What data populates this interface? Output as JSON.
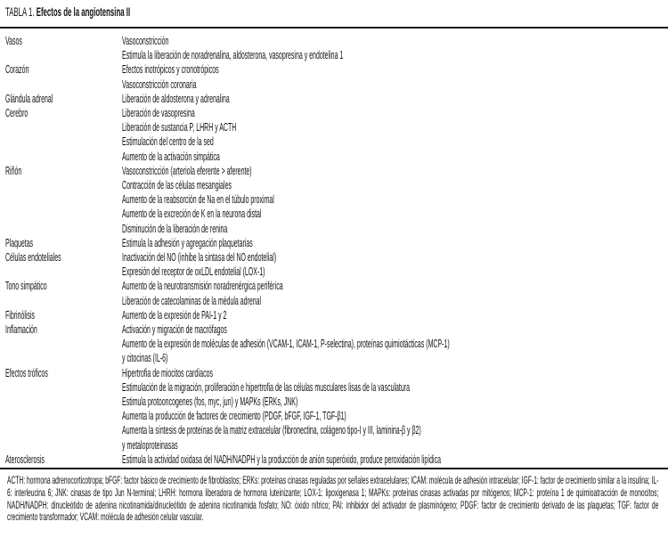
{
  "title": {
    "label": "TABLA 1.",
    "text": "Efectos de la angiotensina II"
  },
  "rows": [
    {
      "category": "Vasos",
      "effects": [
        "Vasoconstricción",
        "Estimula la liberación de noradrenalina, aldosterona, vasopresina y endotelina 1"
      ]
    },
    {
      "category": "Corazón",
      "effects": [
        "Efectos inotrópicos y cronotrópicos",
        "Vasoconstricción coronaria"
      ]
    },
    {
      "category": "Glándula adrenal",
      "effects": [
        "Liberación de aldosterona y adrenalina"
      ]
    },
    {
      "category": "Cerebro",
      "effects": [
        "Liberación de vasopresina",
        "Liberación de sustancia P, LHRH y ACTH",
        "Estimulación del centro de la sed",
        "Aumento de la activación simpática"
      ]
    },
    {
      "category": "Riñón",
      "effects": [
        "Vasoconstricción (arteriola eferente > aferente)",
        "Contracción de las células mesangiales",
        "Aumento de la reabsorción de Na en el túbulo proximal",
        "Aumento de la excreción de K en la neurona distal",
        "Disminución de la liberación de renina"
      ]
    },
    {
      "category": "Plaquetas",
      "effects": [
        "Estimula la adhesión y agregación plaquetarias"
      ]
    },
    {
      "category": "Células endoteliales",
      "effects": [
        "Inactivación del NO (inhibe la sintasa del NO endotelial)",
        "Expresión del receptor de oxLDL endotelial (LOX-1)"
      ]
    },
    {
      "category": "Tono simpático",
      "effects": [
        "Aumento de la neurotransmisión noradrenérgica periférica",
        "Liberación de catecolaminas de la médula adrenal"
      ]
    },
    {
      "category": "Fibrinólisis",
      "effects": [
        "Aumento de la expresión de PAI-1 y 2"
      ]
    },
    {
      "category": "Inflamación",
      "effects": [
        "Activación y migración de macrófagos",
        "Aumento de la expresión de moléculas de adhesión (VCAM-1, ICAM-1, P-selectina), proteínas quimiotácticas (MCP-1)",
        "y citocinas (IL-6)"
      ]
    },
    {
      "category": "Efectos tróficos",
      "effects": [
        "Hipertrofia de miocitos cardíacos",
        "Estimulación de la migración, proliferación e hipertrofia de las células musculares lisas de la vasculatura",
        "Estimula protooncogenes (fos, myc, jun) y MAPKs (ERKs, JNK)",
        "Aumenta la producción de factores de crecimiento (PDGF, bFGF, IGF-1, TGF-β1)",
        "Aumenta la síntesis de proteínas de la matriz extracelular (fibronectina, colágeno tipo-I y III, laminina-β y β2)",
        "y metaloproteinasas"
      ]
    },
    {
      "category": "Aterosclerosis",
      "effects": [
        "Estimula la actividad oxidasa del NADH/NADPH y la producción de anión superóxido, produce peroxidación lipídica"
      ]
    }
  ],
  "footnote": "ACTH: hormona adrenocorticotropa; bFGF: factor básico de crecimiento de fibroblastos; ERKs: proteínas cinasas reguladas por señales extracelulares; ICAM: molécula de adhesión intracelular; IGF-1: factor de crecimiento similar a la insulina; IL-6: interleucina 6; JNK: cinasas de tipo Jun N-terminal; LHRH: hormona liberadora de hormona luteinizante; LOX-1: lipoxigenasa 1; MAPKs: proteínas cinasas activadas por mitógenos; MCP-1: proteína 1 de quimioatracción de monocitos; NADH/NADPH: dinucleótido de adenina nicotinamida/dinucleótido de adenina nicotinamida fosfato; NO: óxido nítrico; PAI: inhibidor del activador de plasminógeno; PDGF: factor de crecimiento derivado de las plaquetas; TGF: factor de crecimiento transformador; VCAM: molécula de adhesión celular vascular."
}
